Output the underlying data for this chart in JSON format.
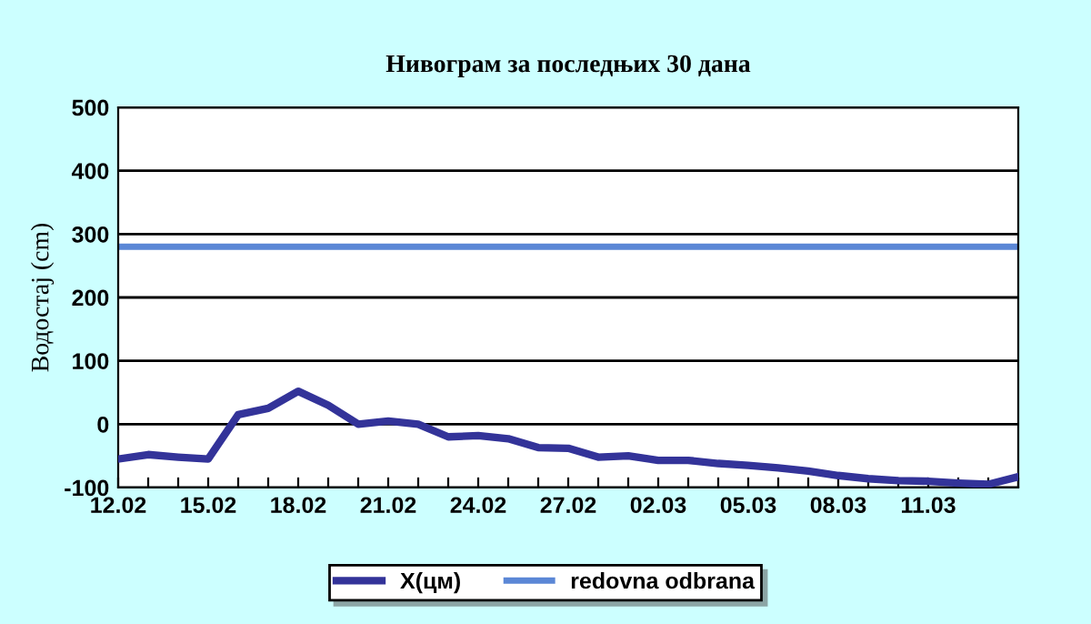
{
  "chart_data": {
    "type": "line",
    "title": "Нивограм за последњих 30 дана",
    "ylabel": "Водостај (cm)",
    "categories": [
      "12.02",
      null,
      null,
      "15.02",
      null,
      null,
      "18.02",
      null,
      null,
      "21.02",
      null,
      null,
      "24.02",
      null,
      null,
      "27.02",
      null,
      null,
      "02.03",
      null,
      null,
      "05.03",
      null,
      null,
      "08.03",
      null,
      null,
      "11.03",
      null,
      null,
      null
    ],
    "series": [
      {
        "name": "X(цм)",
        "color": "#333399",
        "values": [
          -55,
          -48,
          -52,
          -55,
          15,
          25,
          52,
          30,
          0,
          5,
          0,
          -20,
          -18,
          -23,
          -37,
          -38,
          -52,
          -50,
          -57,
          -57,
          -62,
          -65,
          -69,
          -74,
          -81,
          -86,
          -89,
          -90,
          -93,
          -95,
          -83
        ]
      }
    ],
    "ref_lines": [
      {
        "axis": "y",
        "value": 280,
        "label": "redovna odbrana",
        "color": "#5b87d6"
      }
    ],
    "ylim": [
      -100,
      500
    ],
    "yticks": [
      -100,
      0,
      100,
      200,
      300,
      400,
      500
    ],
    "grid": "y",
    "legend": "bottom",
    "marker": "none",
    "line_style": "solid"
  }
}
